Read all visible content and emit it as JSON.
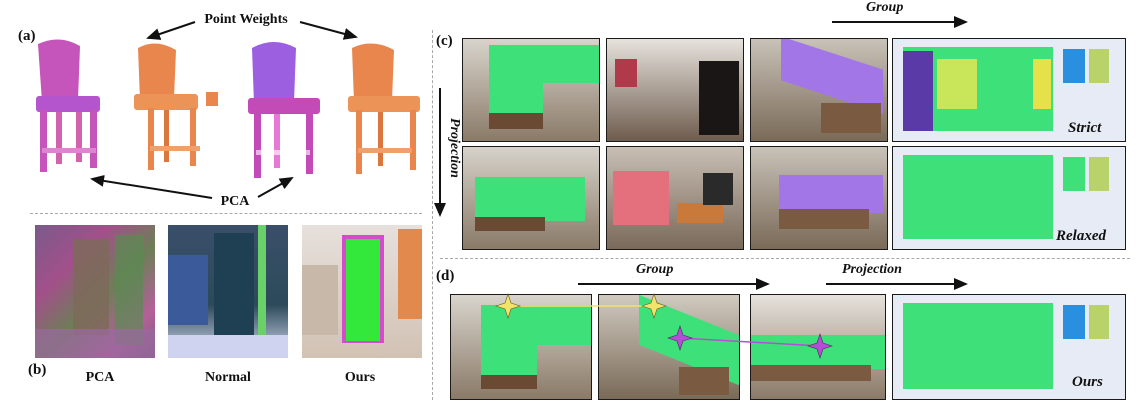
{
  "panel_a": {
    "label": "(a)",
    "top_caption": "Point Weights",
    "bottom_caption": "PCA"
  },
  "panel_b": {
    "label": "(b)",
    "captions": [
      "PCA",
      "Normal",
      "Ours"
    ]
  },
  "panel_c": {
    "label": "(c)",
    "group_label": "Group",
    "projection_label": "Projection",
    "row_labels": [
      "Strict",
      "Relaxed"
    ]
  },
  "panel_d": {
    "label": "(d)",
    "group_label": "Group",
    "projection_label": "Projection",
    "result_label": "Ours"
  },
  "colors": {
    "segment_green": "#3ee07a",
    "segment_purple": "#a276e6",
    "chair_orange": "#e8864d",
    "chair_magenta": "#c24bb8",
    "star_yellow": "#f2e36a",
    "star_purple": "#b54ed6"
  }
}
